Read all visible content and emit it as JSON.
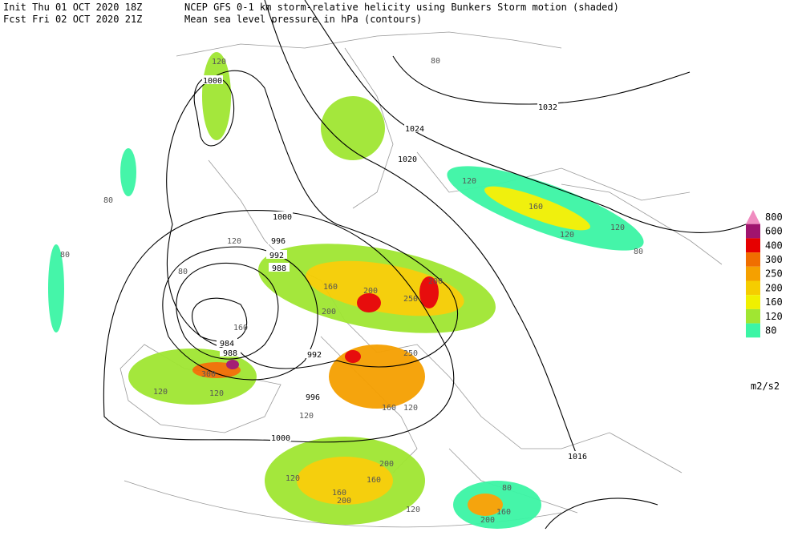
{
  "header": {
    "init": "Init  Thu 01 OCT 2020 18Z",
    "fcst": "Fcst Fri 02 OCT 2020 21Z",
    "title": "NCEP GFS 0-1 km storm-relative helicity using Bunkers Storm motion (shaded)",
    "subtitle": "Mean sea level pressure in hPa (contours)"
  },
  "legend": {
    "levels": [
      {
        "label": "800",
        "color": "#f08cc0"
      },
      {
        "label": "600",
        "color": "#a0146e"
      },
      {
        "label": "400",
        "color": "#e60000"
      },
      {
        "label": "300",
        "color": "#f06e00"
      },
      {
        "label": "250",
        "color": "#f5a000"
      },
      {
        "label": "200",
        "color": "#f5cd00"
      },
      {
        "label": "160",
        "color": "#f0f000"
      },
      {
        "label": "120",
        "color": "#a0e632"
      },
      {
        "label": "80",
        "color": "#3cf5a5"
      }
    ],
    "unit": "m2/s2"
  },
  "isobar_labels": [
    "1000",
    "1032",
    "1024",
    "1020",
    "1000",
    "996",
    "992",
    "988",
    "984",
    "988",
    "992",
    "996",
    "1000",
    "1016"
  ],
  "helicity_labels": [
    "120",
    "80",
    "120",
    "160",
    "120",
    "120",
    "80",
    "200",
    "250",
    "200",
    "160",
    "200",
    "250",
    "160",
    "120",
    "200",
    "160",
    "120",
    "160",
    "200",
    "120",
    "160",
    "200",
    "80",
    "120",
    "120",
    "300",
    "80",
    "80",
    "80",
    "120",
    "160",
    "120"
  ]
}
